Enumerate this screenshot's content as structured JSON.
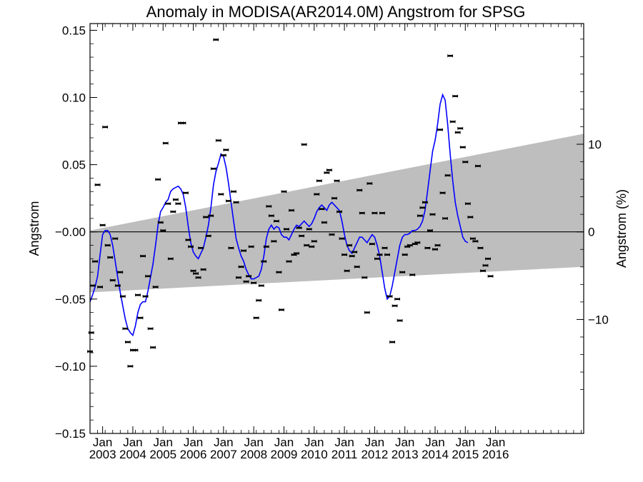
{
  "chart_data": {
    "type": "line",
    "title": "Anomaly in MODISA(AR2014.0M) Angstrom for SPSG",
    "ylabel": "Angstrom",
    "ylabel_right": "Angstrom (%)",
    "ylim": [
      -0.15,
      0.155
    ],
    "yticks": [
      0.15,
      0.1,
      0.05,
      -0.0,
      -0.05,
      -0.1,
      -0.15
    ],
    "ytick_labels": [
      "0.15",
      "0.10",
      "0.05",
      "−0.00",
      "−0.05",
      "−0.10",
      "−0.15"
    ],
    "y2_ticks": [
      10,
      0,
      -10
    ],
    "y2_tick_labels": [
      "10",
      "0",
      "−10"
    ],
    "x_unit": "month index since Aug 2002",
    "xlim": [
      0,
      196
    ],
    "x_ticks": [
      {
        "top": "Jan",
        "bottom": "2003"
      },
      {
        "top": "Jan",
        "bottom": "2004"
      },
      {
        "top": "Jan",
        "bottom": "2005"
      },
      {
        "top": "Jan",
        "bottom": "2006"
      },
      {
        "top": "Jan",
        "bottom": "2007"
      },
      {
        "top": "Jan",
        "bottom": "2008"
      },
      {
        "top": "Jan",
        "bottom": "2009"
      },
      {
        "top": "Jan",
        "bottom": "2010"
      },
      {
        "top": "Jan",
        "bottom": "2011"
      },
      {
        "top": "Jan",
        "bottom": "2012"
      },
      {
        "top": "Jan",
        "bottom": "2013"
      },
      {
        "top": "Jan",
        "bottom": "2014"
      },
      {
        "top": "Jan",
        "bottom": "2015"
      },
      {
        "top": "Jan",
        "bottom": "2016"
      }
    ],
    "x_tick_positions": [
      5,
      17,
      29,
      41,
      53,
      65,
      77,
      89,
      101,
      113,
      125,
      137,
      149,
      161
    ],
    "trend_band": {
      "x": [
        0,
        196
      ],
      "upper": [
        0.001,
        0.073
      ],
      "lower": [
        -0.045,
        -0.026
      ]
    },
    "zero_line": 0,
    "monthly_points": [
      [
        0,
        -0.089
      ],
      [
        0.5,
        -0.075
      ],
      [
        1,
        -0.04
      ],
      [
        2,
        -0.022
      ],
      [
        3,
        0.035
      ],
      [
        4,
        -0.041
      ],
      [
        5,
        0.005
      ],
      [
        6,
        0.078
      ],
      [
        7,
        -0.01
      ],
      [
        8,
        -0.019
      ],
      [
        9,
        -0.036
      ],
      [
        10,
        -0.005
      ],
      [
        11,
        -0.04
      ],
      [
        12,
        -0.03
      ],
      [
        13,
        -0.048
      ],
      [
        14,
        -0.072
      ],
      [
        15,
        -0.082
      ],
      [
        16,
        -0.1
      ],
      [
        17,
        -0.088
      ],
      [
        18,
        -0.088
      ],
      [
        19,
        -0.047
      ],
      [
        20,
        -0.064
      ],
      [
        21,
        -0.018
      ],
      [
        22,
        -0.048
      ],
      [
        23,
        -0.033
      ],
      [
        24,
        -0.072
      ],
      [
        25,
        -0.086
      ],
      [
        26,
        -0.041
      ],
      [
        27,
        0.039
      ],
      [
        28,
        0.007
      ],
      [
        29,
        0.001
      ],
      [
        30,
        0.066
      ],
      [
        31,
        0.021
      ],
      [
        32,
        -0.02
      ],
      [
        33,
        0.015
      ],
      [
        34,
        0.024
      ],
      [
        35,
        0.021
      ],
      [
        36,
        0.081
      ],
      [
        37,
        0.081
      ],
      [
        38,
        0.029
      ],
      [
        39,
        -0.006
      ],
      [
        40,
        -0.011
      ],
      [
        41,
        -0.029
      ],
      [
        42,
        -0.031
      ],
      [
        43,
        -0.034
      ],
      [
        44,
        -0.012
      ],
      [
        45,
        -0.028
      ],
      [
        46,
        0.011
      ],
      [
        47,
        -0.003
      ],
      [
        48,
        0.012
      ],
      [
        49,
        0.047
      ],
      [
        50,
        0.143
      ],
      [
        51,
        0.068
      ],
      [
        52,
        0.028
      ],
      [
        53,
        0.057
      ],
      [
        54,
        0.061
      ],
      [
        55,
        0.023
      ],
      [
        56,
        -0.012
      ],
      [
        57,
        0.03
      ],
      [
        58,
        0.022
      ],
      [
        59,
        -0.034
      ],
      [
        60,
        -0.026
      ],
      [
        61,
        -0.014
      ],
      [
        62,
        -0.037
      ],
      [
        63,
        -0.033
      ],
      [
        64,
        -0.011
      ],
      [
        65,
        -0.038
      ],
      [
        66,
        -0.064
      ],
      [
        67,
        -0.051
      ],
      [
        68,
        -0.04
      ],
      [
        69,
        -0.022
      ],
      [
        70,
        -0.011
      ],
      [
        71,
        0.019
      ],
      [
        72,
        0.012
      ],
      [
        73,
        -0.007
      ],
      [
        74,
        0.008
      ],
      [
        75,
        -0.03
      ],
      [
        76,
        -0.058
      ],
      [
        77,
        0.03
      ],
      [
        78,
        0.002
      ],
      [
        79,
        -0.022
      ],
      [
        80,
        0.016
      ],
      [
        81,
        -0.017
      ],
      [
        82,
        -0.016
      ],
      [
        83,
        0.003
      ],
      [
        84,
        -0.003
      ],
      [
        85,
        0.065
      ],
      [
        86,
        -0.01
      ],
      [
        87,
        0.002
      ],
      [
        88,
        -0.011
      ],
      [
        89,
        -0.007
      ],
      [
        90,
        0.028
      ],
      [
        91,
        0.038
      ],
      [
        92,
        0.017
      ],
      [
        93,
        0.007
      ],
      [
        94,
        0.044
      ],
      [
        95,
        0.046
      ],
      [
        96,
        -0.002
      ],
      [
        97,
        0.025
      ],
      [
        98,
        0.038
      ],
      [
        99,
        0.015
      ],
      [
        100,
        -0.005
      ],
      [
        101,
        -0.017
      ],
      [
        102,
        -0.029
      ],
      [
        103,
        -0.01
      ],
      [
        104,
        -0.018
      ],
      [
        105,
        -0.015
      ],
      [
        106,
        -0.026
      ],
      [
        107,
        0.031
      ],
      [
        108,
        0.014
      ],
      [
        109,
        -0.034
      ],
      [
        110,
        -0.06
      ],
      [
        111,
        0.036
      ],
      [
        112,
        -0.009
      ],
      [
        113,
        0.014
      ],
      [
        114,
        -0.02
      ],
      [
        115,
        -0.017
      ],
      [
        116,
        0.014
      ],
      [
        117,
        -0.012
      ],
      [
        118,
        -0.017
      ],
      [
        119,
        -0.048
      ],
      [
        120,
        -0.082
      ],
      [
        121,
        -0.055
      ],
      [
        122,
        -0.05
      ],
      [
        123,
        -0.066
      ],
      [
        124,
        -0.03
      ],
      [
        125,
        -0.017
      ],
      [
        126,
        -0.011
      ],
      [
        127,
        -0.01
      ],
      [
        128,
        -0.032
      ],
      [
        129,
        -0.009
      ],
      [
        130,
        -0.008
      ],
      [
        131,
        0.012
      ],
      [
        132,
        0.018
      ],
      [
        133,
        0.022
      ],
      [
        134,
        -0.012
      ],
      [
        135,
        0.001
      ],
      [
        136,
        0.013
      ],
      [
        137,
        -0.013
      ],
      [
        138,
        -0.01
      ],
      [
        139,
        0.076
      ],
      [
        140,
        0.029
      ],
      [
        141,
        0.01
      ],
      [
        142,
        0.042
      ],
      [
        143,
        0.131
      ],
      [
        144,
        0.082
      ],
      [
        145,
        0.101
      ],
      [
        146,
        0.074
      ],
      [
        147,
        0.077
      ],
      [
        148,
        0.063
      ],
      [
        149,
        0.052
      ],
      [
        150,
        0.021
      ],
      [
        151,
        0.011
      ],
      [
        152,
        -0.005
      ],
      [
        153,
        -0.007
      ],
      [
        154,
        0.049
      ],
      [
        155,
        -0.012
      ],
      [
        156,
        -0.029
      ],
      [
        157,
        -0.025
      ],
      [
        158,
        -0.02
      ],
      [
        159,
        -0.033
      ]
    ],
    "smoothed_series": [
      [
        0,
        -0.052
      ],
      [
        1,
        -0.047
      ],
      [
        2,
        -0.041
      ],
      [
        3,
        -0.033
      ],
      [
        4,
        -0.017
      ],
      [
        5,
        -0.002
      ],
      [
        6,
        0.001
      ],
      [
        7,
        0.001
      ],
      [
        8,
        -0.002
      ],
      [
        9,
        -0.01
      ],
      [
        10,
        -0.022
      ],
      [
        11,
        -0.034
      ],
      [
        12,
        -0.045
      ],
      [
        13,
        -0.055
      ],
      [
        14,
        -0.065
      ],
      [
        15,
        -0.072
      ],
      [
        16,
        -0.075
      ],
      [
        17,
        -0.077
      ],
      [
        18,
        -0.07
      ],
      [
        19,
        -0.06
      ],
      [
        20,
        -0.054
      ],
      [
        21,
        -0.052
      ],
      [
        22,
        -0.052
      ],
      [
        23,
        -0.044
      ],
      [
        24,
        -0.034
      ],
      [
        25,
        -0.024
      ],
      [
        26,
        -0.01
      ],
      [
        27,
        0.005
      ],
      [
        28,
        0.015
      ],
      [
        29,
        0.018
      ],
      [
        30,
        0.022
      ],
      [
        31,
        0.024
      ],
      [
        32,
        0.03
      ],
      [
        33,
        0.032
      ],
      [
        34,
        0.033
      ],
      [
        35,
        0.034
      ],
      [
        36,
        0.032
      ],
      [
        37,
        0.028
      ],
      [
        38,
        0.018
      ],
      [
        39,
        0.004
      ],
      [
        40,
        -0.008
      ],
      [
        41,
        -0.015
      ],
      [
        42,
        -0.018
      ],
      [
        43,
        -0.02
      ],
      [
        44,
        -0.016
      ],
      [
        45,
        -0.012
      ],
      [
        46,
        -0.004
      ],
      [
        47,
        0.005
      ],
      [
        48,
        0.018
      ],
      [
        49,
        0.035
      ],
      [
        50,
        0.045
      ],
      [
        51,
        0.051
      ],
      [
        52,
        0.058
      ],
      [
        53,
        0.056
      ],
      [
        54,
        0.048
      ],
      [
        55,
        0.036
      ],
      [
        56,
        0.022
      ],
      [
        57,
        0.008
      ],
      [
        58,
        -0.005
      ],
      [
        59,
        -0.012
      ],
      [
        60,
        -0.018
      ],
      [
        61,
        -0.022
      ],
      [
        62,
        -0.028
      ],
      [
        63,
        -0.032
      ],
      [
        64,
        -0.035
      ],
      [
        65,
        -0.035
      ],
      [
        66,
        -0.034
      ],
      [
        67,
        -0.033
      ],
      [
        68,
        -0.028
      ],
      [
        69,
        -0.018
      ],
      [
        70,
        -0.005
      ],
      [
        71,
        0.002
      ],
      [
        72,
        0.005
      ],
      [
        73,
        0.002
      ],
      [
        74,
        0.004
      ],
      [
        75,
        0.003
      ],
      [
        76,
        -0.002
      ],
      [
        77,
        -0.004
      ],
      [
        78,
        -0.004
      ],
      [
        79,
        -0.006
      ],
      [
        80,
        -0.002
      ],
      [
        81,
        0.002
      ],
      [
        82,
        0.005
      ],
      [
        83,
        0.004
      ],
      [
        84,
        0.006
      ],
      [
        85,
        0.008
      ],
      [
        86,
        0.006
      ],
      [
        87,
        0.004
      ],
      [
        88,
        0.006
      ],
      [
        89,
        0.01
      ],
      [
        90,
        0.015
      ],
      [
        91,
        0.018
      ],
      [
        92,
        0.02
      ],
      [
        93,
        0.018
      ],
      [
        94,
        0.016
      ],
      [
        95,
        0.02
      ],
      [
        96,
        0.022
      ],
      [
        97,
        0.02
      ],
      [
        98,
        0.018
      ],
      [
        99,
        0.016
      ],
      [
        100,
        0.008
      ],
      [
        101,
        -0.002
      ],
      [
        102,
        -0.01
      ],
      [
        103,
        -0.014
      ],
      [
        104,
        -0.016
      ],
      [
        105,
        -0.012
      ],
      [
        106,
        -0.008
      ],
      [
        107,
        -0.004
      ],
      [
        108,
        -0.004
      ],
      [
        109,
        -0.006
      ],
      [
        110,
        -0.008
      ],
      [
        111,
        -0.005
      ],
      [
        112,
        -0.002
      ],
      [
        113,
        -0.004
      ],
      [
        114,
        -0.01
      ],
      [
        115,
        -0.018
      ],
      [
        116,
        -0.03
      ],
      [
        117,
        -0.042
      ],
      [
        118,
        -0.05
      ],
      [
        119,
        -0.048
      ],
      [
        120,
        -0.04
      ],
      [
        121,
        -0.03
      ],
      [
        122,
        -0.02
      ],
      [
        123,
        -0.01
      ],
      [
        124,
        -0.004
      ],
      [
        125,
        -0.002
      ],
      [
        126,
        -0.002
      ],
      [
        127,
        -0.001
      ],
      [
        128,
        0.001
      ],
      [
        129,
        0.001
      ],
      [
        130,
        0.002
      ],
      [
        131,
        0.004
      ],
      [
        132,
        0.008
      ],
      [
        133,
        0.016
      ],
      [
        134,
        0.03
      ],
      [
        135,
        0.045
      ],
      [
        136,
        0.06
      ],
      [
        137,
        0.068
      ],
      [
        138,
        0.08
      ],
      [
        139,
        0.095
      ],
      [
        140,
        0.102
      ],
      [
        141,
        0.098
      ],
      [
        142,
        0.08
      ],
      [
        143,
        0.058
      ],
      [
        144,
        0.038
      ],
      [
        145,
        0.022
      ],
      [
        146,
        0.012
      ],
      [
        147,
        0.004
      ],
      [
        148,
        -0.004
      ],
      [
        149,
        -0.007
      ],
      [
        150,
        -0.008
      ]
    ],
    "colors": {
      "band": "#bebebe",
      "line": "#0000ff",
      "points": "#000000",
      "axes": "#000000"
    }
  }
}
